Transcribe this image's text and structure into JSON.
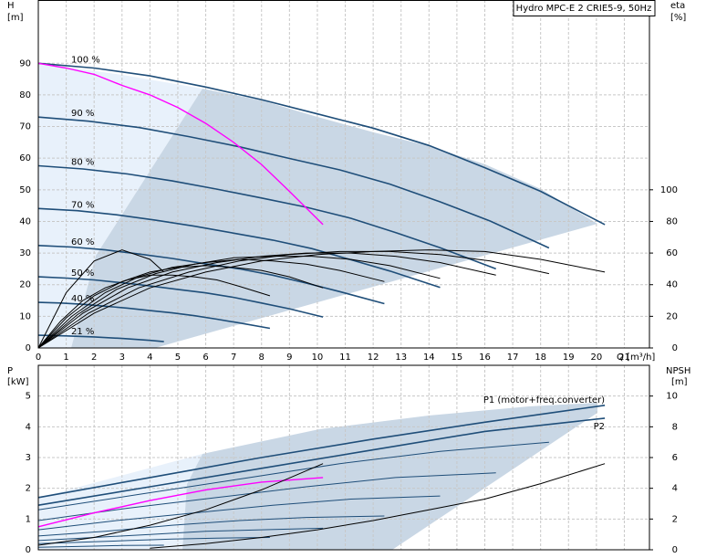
{
  "chart_data": [
    {
      "type": "line",
      "title": "Hydro MPC-E 2 CRIE5-9, 50Hz",
      "x_label": "Q [m³/h]",
      "y_label": "H",
      "y_unit": "[m]",
      "y2_label": "eta",
      "y2_unit": "[%]",
      "xlim": [
        0,
        21.9
      ],
      "ylim": [
        0,
        110
      ],
      "y2lim": [
        0,
        220
      ],
      "xticks": [
        0,
        1,
        2,
        3,
        4,
        5,
        6,
        7,
        8,
        9,
        10,
        11,
        12,
        13,
        14,
        15,
        16,
        17,
        18,
        19,
        20,
        21
      ],
      "yticks": [
        0,
        10,
        20,
        30,
        40,
        50,
        60,
        70,
        80,
        90
      ],
      "y2ticks": [
        0,
        20,
        40,
        60,
        80,
        100
      ],
      "grid": true,
      "series": [
        {
          "name": "100 %",
          "label_position": "start",
          "color": "#1f4e79",
          "x": [
            0,
            2,
            4,
            6,
            8,
            10,
            12,
            14,
            16,
            18,
            20.3
          ],
          "values": [
            90,
            88.5,
            86,
            82.5,
            78.5,
            74,
            69.5,
            64,
            57,
            49.5,
            39
          ]
        },
        {
          "name": "90 %",
          "label_position": "start",
          "color": "#1f4e79",
          "x": [
            0,
            1.8,
            3.6,
            5.4,
            7.2,
            9,
            10.8,
            12.6,
            14.4,
            16.2,
            18.3
          ],
          "values": [
            73,
            71.7,
            69.7,
            66.8,
            63.6,
            59.9,
            56.3,
            51.8,
            46.2,
            40.1,
            31.6
          ]
        },
        {
          "name": "80 %",
          "label_position": "start",
          "color": "#1f4e79",
          "x": [
            0,
            1.6,
            3.2,
            4.8,
            6.4,
            8,
            9.6,
            11.2,
            12.8,
            14.4,
            16.4
          ],
          "values": [
            57.6,
            56.6,
            55,
            52.8,
            50.2,
            47.4,
            44.5,
            41,
            36.5,
            31.7,
            25
          ]
        },
        {
          "name": "70 %",
          "label_position": "start",
          "color": "#1f4e79",
          "x": [
            0,
            1.4,
            2.8,
            4.2,
            5.6,
            7,
            8.4,
            9.8,
            11.2,
            12.6,
            14.4
          ],
          "values": [
            44.1,
            43.4,
            42.1,
            40.4,
            38.5,
            36.3,
            34.1,
            31.4,
            27.9,
            24.3,
            19.1
          ]
        },
        {
          "name": "60 %",
          "label_position": "start",
          "color": "#1f4e79",
          "x": [
            0,
            1.2,
            2.4,
            3.6,
            4.8,
            6,
            7.2,
            8.4,
            9.6,
            10.8,
            12.4
          ],
          "values": [
            32.4,
            31.9,
            31,
            29.7,
            28.3,
            26.6,
            25,
            23,
            20.5,
            17.8,
            14
          ]
        },
        {
          "name": "50 %",
          "label_position": "start",
          "color": "#1f4e79",
          "x": [
            0,
            1,
            2,
            3,
            4,
            5,
            6,
            7,
            8,
            9,
            10.2
          ],
          "values": [
            22.5,
            22.1,
            21.5,
            20.6,
            19.6,
            18.5,
            17.4,
            16,
            14.2,
            12.4,
            9.8
          ]
        },
        {
          "name": "40 %",
          "label_position": "start",
          "color": "#1f4e79",
          "x": [
            0,
            0.8,
            1.6,
            2.4,
            3.2,
            4,
            4.8,
            5.6,
            6.4,
            7.2,
            8.3
          ],
          "values": [
            14.4,
            14.2,
            13.8,
            13.2,
            12.6,
            11.8,
            11.1,
            10.2,
            9.1,
            7.9,
            6.2
          ]
        },
        {
          "name": "21 %",
          "label_position": "start",
          "color": "#1f4e79",
          "x": [
            0,
            1,
            2,
            3,
            4,
            4.5
          ],
          "values": [
            4,
            3.8,
            3.5,
            3,
            2.4,
            2
          ]
        },
        {
          "color": "#ff00ff",
          "x": [
            0,
            1,
            2,
            3,
            4,
            5,
            6,
            7,
            8,
            9,
            10.2
          ],
          "values": [
            90,
            88.5,
            86.5,
            83,
            80,
            76,
            71,
            65,
            58,
            49.5,
            39
          ]
        },
        {
          "color": "#000000",
          "axis": "y2",
          "x": [
            0,
            1,
            2,
            3,
            4,
            4.5
          ],
          "values": [
            0,
            35,
            55,
            62,
            56,
            48
          ]
        },
        {
          "color": "#000000",
          "axis": "y2",
          "x": [
            0,
            2,
            4,
            6,
            8,
            10,
            12,
            14,
            16,
            18,
            20.3
          ],
          "values": [
            0,
            22,
            38,
            48,
            55,
            59,
            61,
            62,
            61,
            56,
            48
          ]
        },
        {
          "color": "#000000",
          "axis": "y2",
          "x": [
            0,
            1.8,
            3.6,
            5.4,
            7.2,
            9,
            10.8,
            12.6,
            14.4,
            16.2,
            18.3
          ],
          "values": [
            0,
            22,
            38,
            48,
            55,
            59,
            61,
            61,
            59,
            55,
            47
          ]
        },
        {
          "color": "#000000",
          "axis": "y2",
          "x": [
            0,
            1.6,
            3.2,
            4.8,
            6.4,
            8,
            9.6,
            11.2,
            12.8,
            14.4,
            16.4
          ],
          "values": [
            0,
            22,
            38,
            48,
            54,
            58,
            60,
            60,
            58,
            54,
            46
          ]
        },
        {
          "color": "#000000",
          "axis": "y2",
          "x": [
            0,
            1.4,
            2.8,
            4.2,
            5.6,
            7,
            8.4,
            9.8,
            11.2,
            12.6,
            14.4
          ],
          "values": [
            0,
            21,
            37,
            47,
            53,
            57,
            58,
            58,
            56,
            52,
            44
          ]
        },
        {
          "color": "#000000",
          "axis": "y2",
          "x": [
            0,
            1.2,
            2.4,
            3.6,
            4.8,
            6,
            7.2,
            8.4,
            9.6,
            10.8,
            12.4
          ],
          "values": [
            0,
            20,
            35,
            45,
            51,
            54,
            56,
            55,
            53,
            49,
            42
          ]
        },
        {
          "color": "#000000",
          "axis": "y2",
          "x": [
            0,
            1,
            2,
            3,
            4,
            5,
            6,
            7,
            8,
            9,
            10.2
          ],
          "values": [
            0,
            19,
            33,
            42,
            48,
            51,
            52,
            51,
            49,
            45,
            38
          ]
        },
        {
          "color": "#000000",
          "axis": "y2",
          "x": [
            0,
            0.8,
            1.6,
            2.4,
            3.2,
            4,
            4.8,
            5.6,
            6.4,
            7.2,
            8.3
          ],
          "values": [
            0,
            17,
            30,
            38,
            43,
            46,
            46,
            45,
            43,
            39,
            33
          ]
        }
      ]
    },
    {
      "type": "line",
      "y_label": "P",
      "y_unit": "[kW]",
      "y2_label": "NPSH",
      "y2_unit": "[m]",
      "xlim": [
        0,
        21.9
      ],
      "ylim": [
        0,
        6
      ],
      "y2lim": [
        0,
        12
      ],
      "yticks": [
        0,
        1,
        2,
        3,
        4,
        5
      ],
      "y2ticks": [
        0,
        2,
        4,
        6,
        8,
        10
      ],
      "grid": true,
      "series": [
        {
          "name": "P1 (motor+freq.converter)",
          "label_position": "end-above",
          "color": "#1f4e79",
          "x": [
            0,
            4,
            8,
            12,
            16,
            20.3
          ],
          "values": [
            1.7,
            2.35,
            3,
            3.6,
            4.15,
            4.7
          ]
        },
        {
          "name": "P2",
          "label_position": "end-below",
          "color": "#1f4e79",
          "x": [
            0,
            4,
            8,
            12,
            16,
            20.3
          ],
          "values": [
            1.45,
            2.05,
            2.65,
            3.25,
            3.85,
            4.28
          ]
        },
        {
          "color": "#1f4e79",
          "x": [
            0,
            3.6,
            7.2,
            10.8,
            14.4,
            18.3
          ],
          "values": [
            1.3,
            1.8,
            2.3,
            2.8,
            3.2,
            3.5
          ]
        },
        {
          "color": "#1f4e79",
          "x": [
            0,
            3.2,
            6.4,
            9.6,
            12.8,
            16.4
          ],
          "values": [
            0.95,
            1.35,
            1.7,
            2.05,
            2.35,
            2.5
          ]
        },
        {
          "color": "#1f4e79",
          "x": [
            0,
            2.8,
            5.6,
            8.4,
            11.2,
            14.4
          ],
          "values": [
            0.65,
            0.95,
            1.2,
            1.45,
            1.65,
            1.75
          ]
        },
        {
          "color": "#1f4e79",
          "x": [
            0,
            2.4,
            4.8,
            7.2,
            9.6,
            12.4
          ],
          "values": [
            0.45,
            0.6,
            0.8,
            0.95,
            1.05,
            1.1
          ]
        },
        {
          "color": "#1f4e79",
          "x": [
            0,
            2,
            4,
            6,
            8,
            10.2
          ],
          "values": [
            0.3,
            0.4,
            0.5,
            0.6,
            0.65,
            0.7
          ]
        },
        {
          "color": "#1f4e79",
          "x": [
            0,
            1.6,
            3.2,
            4.8,
            6.4,
            8.3
          ],
          "values": [
            0.2,
            0.25,
            0.3,
            0.35,
            0.38,
            0.4
          ]
        },
        {
          "color": "#1f4e79",
          "x": [
            0,
            1,
            2,
            3,
            4.5
          ],
          "values": [
            0.08,
            0.1,
            0.12,
            0.14,
            0.15
          ]
        },
        {
          "color": "#ff00ff",
          "x": [
            0,
            2,
            4,
            6,
            8,
            10.2
          ],
          "values": [
            0.75,
            1.2,
            1.6,
            1.95,
            2.2,
            2.35
          ]
        },
        {
          "color": "#000000",
          "x": [
            0,
            2,
            4,
            6,
            8,
            10.2
          ],
          "values": [
            0.15,
            0.4,
            0.8,
            1.3,
            1.95,
            2.8
          ]
        },
        {
          "color": "#000000",
          "axis": "y2",
          "x": [
            4,
            6,
            8,
            10,
            12,
            14,
            16,
            18,
            20.3
          ],
          "values": [
            0.1,
            0.4,
            0.8,
            1.3,
            1.9,
            2.6,
            3.3,
            4.3,
            5.6
          ]
        }
      ]
    }
  ]
}
